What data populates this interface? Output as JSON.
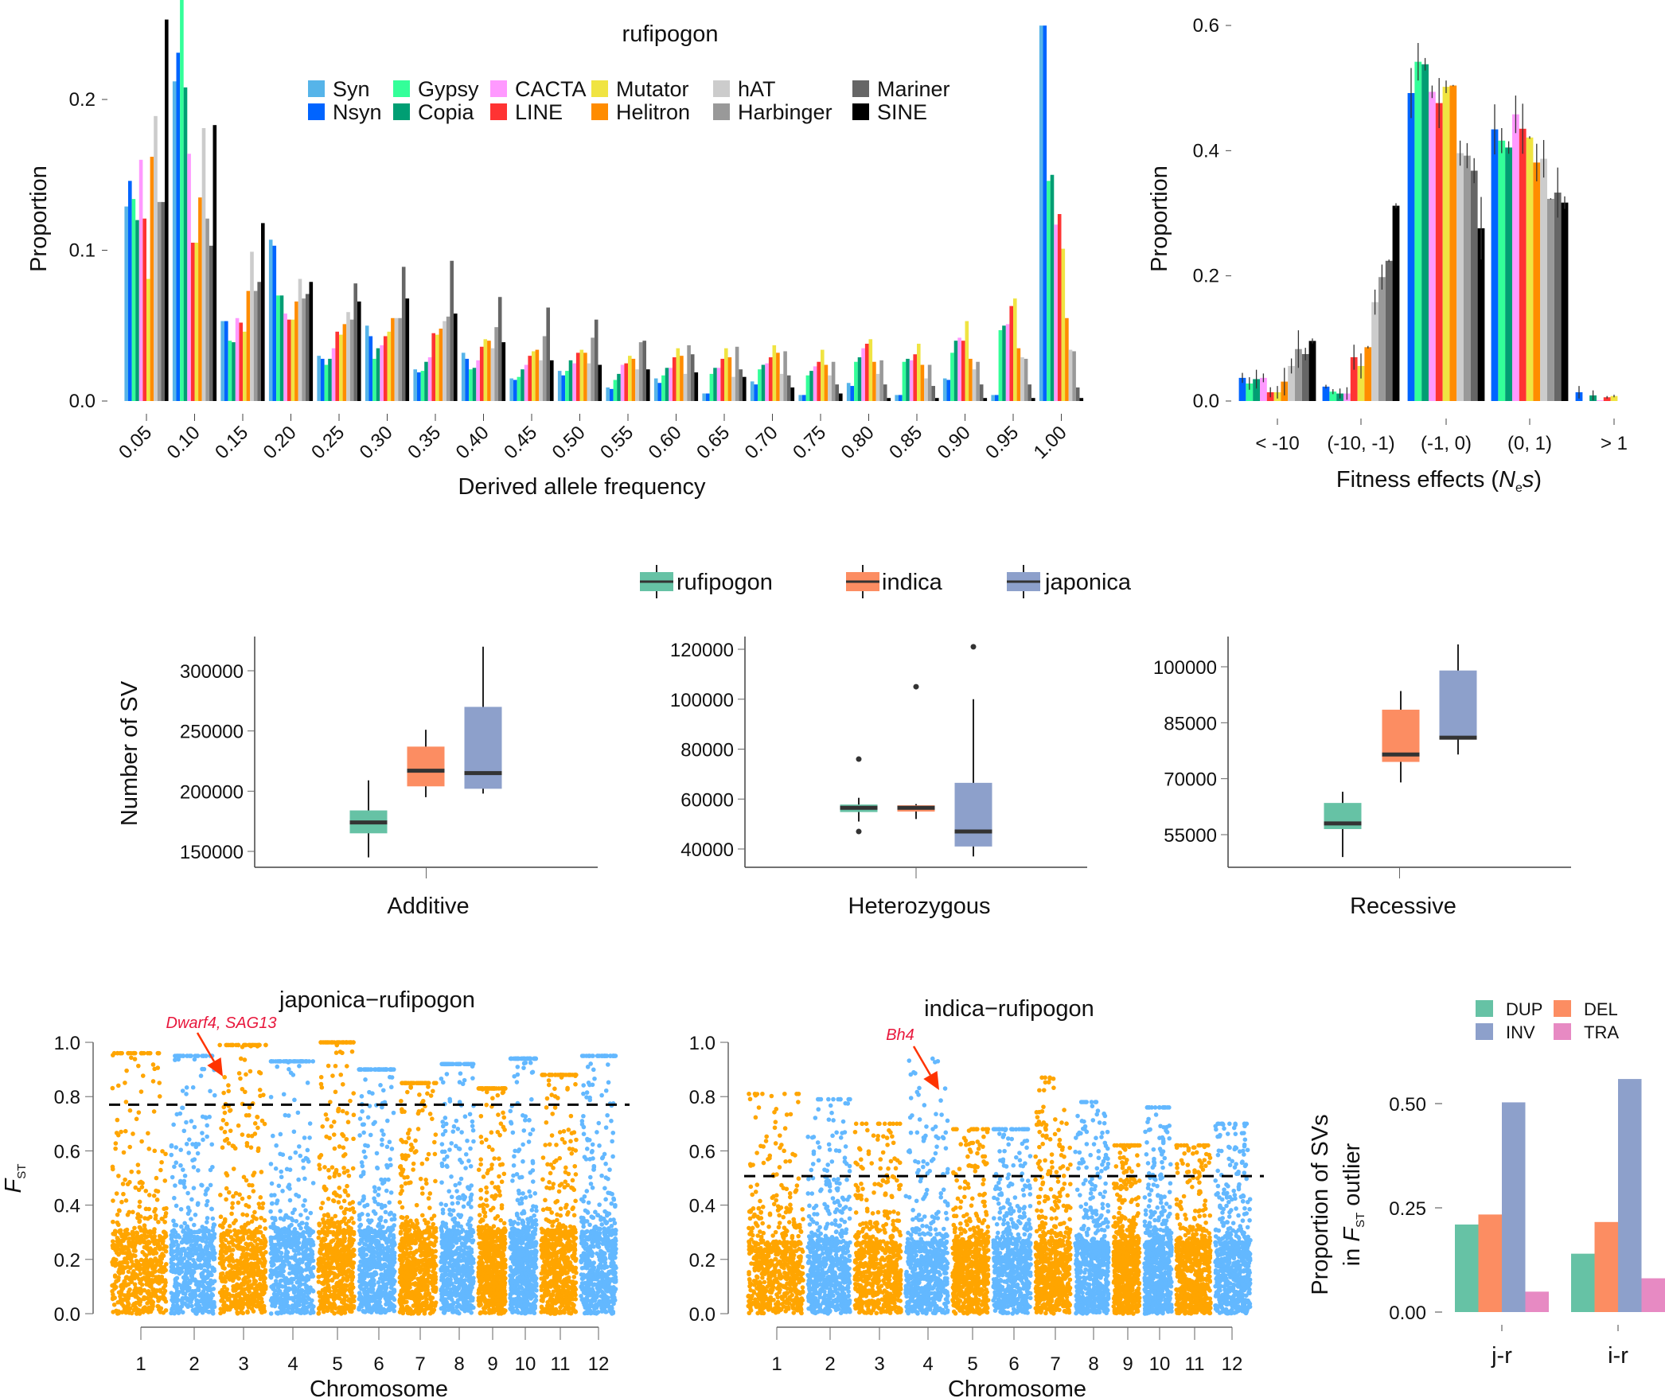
{
  "chart_data": [
    {
      "type": "bar",
      "title": "rufipogon",
      "xlabel": "Derived allele frequency",
      "ylabel": "Proportion",
      "ylim": [
        0,
        0.25
      ],
      "yticks": [
        "0.0",
        "0.1",
        "0.2"
      ],
      "legend_placement": "top",
      "categories": [
        "0.05",
        "0.10",
        "0.15",
        "0.20",
        "0.25",
        "0.30",
        "0.35",
        "0.40",
        "0.45",
        "0.50",
        "0.55",
        "0.60",
        "0.65",
        "0.70",
        "0.75",
        "0.80",
        "0.85",
        "0.90",
        "0.95",
        "1.00"
      ],
      "series": [
        {
          "name": "Syn",
          "color": "#56B4E9",
          "values": [
            0.129,
            0.212,
            0.053,
            0.107,
            0.03,
            0.05,
            0.021,
            0.032,
            0.015,
            0.02,
            0.009,
            0.015,
            0.005,
            0.013,
            0.004,
            0.012,
            0.004,
            0.015,
            0.004,
            0.249
          ]
        },
        {
          "name": "Nsyn",
          "color": "#0064FF",
          "values": [
            0.146,
            0.231,
            0.053,
            0.103,
            0.028,
            0.043,
            0.019,
            0.028,
            0.014,
            0.017,
            0.008,
            0.012,
            0.005,
            0.011,
            0.004,
            0.01,
            0.004,
            0.014,
            0.004,
            0.249
          ]
        },
        {
          "name": "Gypsy",
          "color": "#33FF99",
          "values": [
            0.134,
            0.27,
            0.04,
            0.07,
            0.024,
            0.028,
            0.02,
            0.021,
            0.016,
            0.02,
            0.014,
            0.017,
            0.018,
            0.021,
            0.017,
            0.026,
            0.026,
            0.032,
            0.047,
            0.146
          ]
        },
        {
          "name": "Copia",
          "color": "#009E73",
          "values": [
            0.12,
            0.208,
            0.039,
            0.07,
            0.028,
            0.035,
            0.026,
            0.022,
            0.021,
            0.027,
            0.018,
            0.022,
            0.022,
            0.024,
            0.02,
            0.029,
            0.028,
            0.04,
            0.05,
            0.15
          ]
        },
        {
          "name": "CACTA",
          "color": "#FF99FF",
          "values": [
            0.16,
            0.164,
            0.055,
            0.058,
            0.035,
            0.037,
            0.029,
            0.027,
            0.024,
            0.025,
            0.024,
            0.022,
            0.022,
            0.025,
            0.023,
            0.035,
            0.027,
            0.042,
            0.051,
            0.117
          ]
        },
        {
          "name": "LINE",
          "color": "#FF3333",
          "values": [
            0.121,
            0.105,
            0.052,
            0.054,
            0.046,
            0.043,
            0.045,
            0.036,
            0.03,
            0.032,
            0.025,
            0.029,
            0.028,
            0.029,
            0.026,
            0.038,
            0.031,
            0.04,
            0.063,
            0.124
          ]
        },
        {
          "name": "Mutator",
          "color": "#F0E442",
          "values": [
            0.081,
            0.105,
            0.046,
            0.054,
            0.044,
            0.046,
            0.044,
            0.041,
            0.033,
            0.034,
            0.03,
            0.035,
            0.035,
            0.037,
            0.034,
            0.041,
            0.038,
            0.053,
            0.068,
            0.101
          ]
        },
        {
          "name": "Helitron",
          "color": "#FF8C00",
          "values": [
            0.162,
            0.135,
            0.073,
            0.066,
            0.051,
            0.055,
            0.048,
            0.04,
            0.034,
            0.032,
            0.028,
            0.03,
            0.029,
            0.032,
            0.024,
            0.026,
            0.024,
            0.028,
            0.035,
            0.055
          ]
        },
        {
          "name": "hAT",
          "color": "#CCCCCC",
          "values": [
            0.189,
            0.181,
            0.099,
            0.081,
            0.059,
            0.055,
            0.053,
            0.035,
            0.027,
            0.025,
            0.021,
            0.018,
            0.016,
            0.018,
            0.017,
            0.018,
            0.015,
            0.021,
            0.029,
            0.034
          ]
        },
        {
          "name": "Harbinger",
          "color": "#999999",
          "values": [
            0.132,
            0.121,
            0.073,
            0.068,
            0.054,
            0.055,
            0.056,
            0.049,
            0.043,
            0.042,
            0.039,
            0.037,
            0.036,
            0.033,
            0.026,
            0.027,
            0.024,
            0.026,
            0.028,
            0.033
          ]
        },
        {
          "name": "Mariner",
          "color": "#666666",
          "values": [
            0.132,
            0.103,
            0.079,
            0.071,
            0.078,
            0.089,
            0.093,
            0.069,
            0.062,
            0.054,
            0.04,
            0.031,
            0.021,
            0.017,
            0.011,
            0.011,
            0.01,
            0.011,
            0.011,
            0.009
          ]
        },
        {
          "name": "SINE",
          "color": "#000000",
          "values": [
            0.253,
            0.183,
            0.118,
            0.079,
            0.066,
            0.068,
            0.058,
            0.039,
            0.027,
            0.024,
            0.021,
            0.019,
            0.016,
            0.009,
            0.005,
            0.002,
            0.002,
            0.002,
            0.002,
            0.002
          ]
        }
      ]
    },
    {
      "type": "bar",
      "xlabel": "Fitness effects (Nes)",
      "xlabel_parts": {
        "pre": "Fitness effects (",
        "N": "N",
        "sub": "e",
        "s": "s",
        "post": ")"
      },
      "ylabel": "Proportion",
      "ylim": [
        0,
        0.6
      ],
      "yticks": [
        "0.0",
        "0.2",
        "0.4",
        "0.6"
      ],
      "categories": [
        "< -10",
        "(-10, -1)",
        "(-1, 0)",
        "(0, 1)",
        "> 1"
      ],
      "series": [
        {
          "name": "Nsyn",
          "color": "#0064FF",
          "values": [
            0.037,
            0.023,
            0.492,
            0.434,
            0.014
          ],
          "errors": [
            0.008,
            0.003,
            0.04,
            0.04,
            0.01
          ]
        },
        {
          "name": "Gypsy",
          "color": "#33FF99",
          "values": [
            0.028,
            0.015,
            0.542,
            0.416,
            0.0
          ],
          "errors": [
            0.01,
            0.004,
            0.03,
            0.02,
            0
          ]
        },
        {
          "name": "Copia",
          "color": "#009E73",
          "values": [
            0.035,
            0.012,
            0.538,
            0.405,
            0.009
          ],
          "errors": [
            0.015,
            0.008,
            0.01,
            0.01,
            0.008
          ]
        },
        {
          "name": "CACTA",
          "color": "#FF99FF",
          "values": [
            0.037,
            0.012,
            0.494,
            0.458,
            0.001
          ],
          "errors": [
            0.007,
            0.01,
            0.01,
            0.03,
            0
          ]
        },
        {
          "name": "LINE",
          "color": "#FF3333",
          "values": [
            0.014,
            0.07,
            0.476,
            0.435,
            0.006
          ],
          "errors": [
            0.008,
            0.02,
            0.04,
            0.04,
            0.002
          ]
        },
        {
          "name": "Mutator",
          "color": "#F0E442",
          "values": [
            0.014,
            0.056,
            0.502,
            0.421,
            0.008
          ],
          "errors": [
            0.01,
            0.02,
            0.01,
            0.002,
            0.002
          ]
        },
        {
          "name": "Helitron",
          "color": "#FF8C00",
          "values": [
            0.031,
            0.086,
            0.504,
            0.381,
            0
          ],
          "errors": [
            0.022,
            0.002,
            0.001,
            0.03,
            0
          ]
        },
        {
          "name": "hAT",
          "color": "#CCCCCC",
          "values": [
            0.056,
            0.158,
            0.396,
            0.387,
            0
          ],
          "errors": [
            0.012,
            0.02,
            0.02,
            0.03,
            0
          ]
        },
        {
          "name": "Harbinger",
          "color": "#999999",
          "values": [
            0.083,
            0.198,
            0.392,
            0.323,
            0
          ],
          "errors": [
            0.03,
            0.02,
            0.02,
            0.001,
            0
          ]
        },
        {
          "name": "Mariner",
          "color": "#666666",
          "values": [
            0.075,
            0.224,
            0.368,
            0.333,
            0
          ],
          "errors": [
            0.01,
            0.002,
            0.02,
            0.04,
            0
          ]
        },
        {
          "name": "SINE",
          "color": "#000000",
          "values": [
            0.096,
            0.312,
            0.276,
            0.317,
            0
          ],
          "errors": [
            0.004,
            0.004,
            0.05,
            0.01,
            0
          ]
        }
      ]
    },
    {
      "type": "box",
      "ylabel": "Number of SV",
      "legend": [
        {
          "name": "rufipogon",
          "color": "#66C2A5"
        },
        {
          "name": "indica",
          "color": "#FC8D62"
        },
        {
          "name": "japonica",
          "color": "#8DA0CB"
        }
      ],
      "panels": [
        {
          "category": "Additive",
          "yticks": [
            "150000",
            "200000",
            "250000",
            "300000"
          ],
          "boxes": [
            {
              "group": "rufipogon",
              "min": 145000,
              "q1": 165000,
              "median": 174000,
              "q3": 184000,
              "max": 209000,
              "outliers": []
            },
            {
              "group": "indica",
              "min": 195000,
              "q1": 204000,
              "median": 217000,
              "q3": 237000,
              "max": 251000,
              "outliers": []
            },
            {
              "group": "japonica",
              "min": 198000,
              "q1": 202000,
              "median": 215000,
              "q3": 270000,
              "max": 320000,
              "outliers": []
            }
          ]
        },
        {
          "category": "Heterozygous",
          "yticks": [
            "40000",
            "60000",
            "80000",
            "100000",
            "120000"
          ],
          "boxes": [
            {
              "group": "rufipogon",
              "min": 51000,
              "q1": 54800,
              "median": 56500,
              "q3": 57800,
              "max": 60500,
              "outliers": [
                76000,
                47000
              ]
            },
            {
              "group": "indica",
              "min": 52000,
              "q1": 55000,
              "median": 56500,
              "q3": 57500,
              "max": 58000,
              "outliers": [
                105000
              ]
            },
            {
              "group": "japonica",
              "min": 37000,
              "q1": 41000,
              "median": 47000,
              "q3": 66500,
              "max": 100000,
              "outliers": [
                121000
              ]
            }
          ]
        },
        {
          "category": "Recessive",
          "yticks": [
            "55000",
            "70000",
            "85000",
            "100000"
          ],
          "boxes": [
            {
              "group": "rufipogon",
              "min": 49000,
              "q1": 56500,
              "median": 58000,
              "q3": 63500,
              "max": 66500,
              "outliers": []
            },
            {
              "group": "indica",
              "min": 69000,
              "q1": 74500,
              "median": 76500,
              "q3": 88500,
              "max": 93500,
              "outliers": []
            },
            {
              "group": "japonica",
              "min": 76500,
              "q1": 80500,
              "median": 81000,
              "q3": 99000,
              "max": 106000,
              "outliers": []
            }
          ]
        }
      ]
    },
    {
      "type": "scatter",
      "title": "japonica−rufipogon",
      "xlabel": "Chromosome",
      "ylabel": "FST",
      "ylabel_parts": {
        "F": "F",
        "sub": "ST"
      },
      "ylim": [
        0,
        1.0
      ],
      "yticks": [
        "0.0",
        "0.2",
        "0.4",
        "0.6",
        "0.8",
        "1.0"
      ],
      "chromosomes": [
        "1",
        "2",
        "3",
        "4",
        "5",
        "6",
        "7",
        "8",
        "9",
        "10",
        "11",
        "12"
      ],
      "chromosome_colors": [
        "#FFA500",
        "#63B8FF"
      ],
      "threshold": 0.77,
      "peak_fst": [
        0.96,
        0.95,
        0.99,
        0.93,
        1.0,
        0.9,
        0.85,
        0.92,
        0.83,
        0.94,
        0.88,
        0.95
      ],
      "annotation": {
        "text": "Dwarf4, SAG13",
        "chromosome": "2",
        "color": "#E8173C"
      }
    },
    {
      "type": "scatter",
      "title": "indica−rufipogon",
      "xlabel": "Chromosome",
      "ylim": [
        0,
        1.0
      ],
      "yticks": [
        "0.0",
        "0.2",
        "0.4",
        "0.6",
        "0.8",
        "1.0"
      ],
      "chromosomes": [
        "1",
        "2",
        "3",
        "4",
        "5",
        "6",
        "7",
        "8",
        "9",
        "10",
        "11",
        "12"
      ],
      "chromosome_colors": [
        "#FFA500",
        "#63B8FF"
      ],
      "threshold": 0.507,
      "peak_fst": [
        0.81,
        0.79,
        0.7,
        0.94,
        0.68,
        0.68,
        0.87,
        0.78,
        0.62,
        0.76,
        0.62,
        0.7
      ],
      "annotation": {
        "text": "Bh4",
        "chromosome": "4",
        "color": "#E8173C"
      }
    },
    {
      "type": "bar",
      "ylabel_line1": "Proportion of SVs",
      "ylabel_line2": {
        "pre": "in ",
        "F": "F",
        "sub": "ST",
        "post": " outlier"
      },
      "ylim": [
        0,
        0.56
      ],
      "yticks": [
        "0.00",
        "0.25",
        "0.50"
      ],
      "legend_placement": "top",
      "categories": [
        "j-r",
        "i-r"
      ],
      "series": [
        {
          "name": "DUP",
          "color": "#66C2A5",
          "values": [
            0.21,
            0.14
          ]
        },
        {
          "name": "DEL",
          "color": "#FC8D62",
          "values": [
            0.234,
            0.216
          ]
        },
        {
          "name": "INV",
          "color": "#8DA0CB",
          "values": [
            0.503,
            0.559
          ]
        },
        {
          "name": "TRA",
          "color": "#E78AC3",
          "values": [
            0.049,
            0.081
          ]
        }
      ]
    }
  ]
}
